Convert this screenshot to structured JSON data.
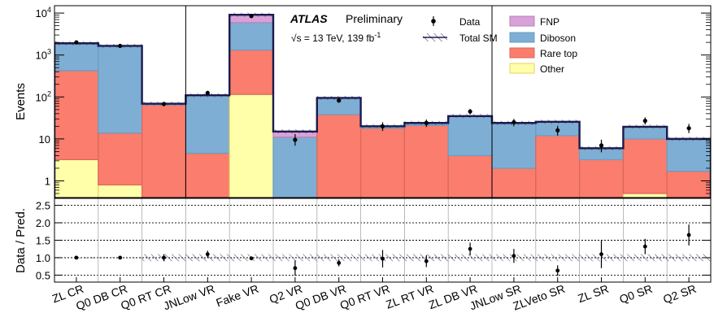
{
  "chart_data": {
    "type": "bar",
    "stacked": true,
    "y_scale": "log",
    "ylim": [
      0.4,
      15000
    ],
    "ratio_ylim": [
      0.3,
      2.7
    ],
    "ylabel": "Events",
    "ratio_ylabel": "Data / Pred.",
    "y_ticks": [
      "1",
      "10",
      "10^2",
      "10^3",
      "10^4"
    ],
    "ratio_ticks": [
      "0.5",
      "1.0",
      "1.5",
      "2.0",
      "2.5"
    ],
    "experiment": "ATLAS",
    "status": "Preliminary",
    "energy_label": "√s = 13 TeV, 139 fb",
    "energy_sup": "-1",
    "categories": [
      "ZL CR",
      "Q0 DB CR",
      "Q0 RT CR",
      "JNLow VR",
      "Fake VR",
      "Q2 VR",
      "Q0 DB VR",
      "Q0 RT VR",
      "ZL RT VR",
      "ZL DB VR",
      "JNLow SR",
      "ZLVeto SR",
      "ZL SR",
      "Q0 SR",
      "Q2 SR"
    ],
    "series": [
      {
        "name": "Other",
        "color": "#ffffaa",
        "edge": "#e6d26a",
        "values": [
          3.2,
          0.8,
          0,
          0.35,
          115,
          0,
          0,
          0,
          0,
          0,
          0,
          0.35,
          0,
          0.5,
          0
        ]
      },
      {
        "name": "Rare top",
        "color": "#fa7d6e",
        "edge": "#d86858",
        "values": [
          420,
          13,
          65,
          4.2,
          1200,
          0,
          38,
          18,
          21,
          4,
          2,
          11.6,
          3.2,
          9.5,
          1.7
        ]
      },
      {
        "name": "Diboson",
        "color": "#7eaed3",
        "edge": "#6a9cc4",
        "values": [
          1480,
          1637,
          4,
          105,
          4600,
          11,
          57,
          2,
          3,
          31,
          22,
          13,
          2.8,
          9.5,
          8.3
        ]
      },
      {
        "name": "FNP",
        "color": "#d8a1d8",
        "edge": "#b583b5",
        "values": [
          0,
          0,
          0,
          0,
          3200,
          4,
          0,
          0,
          0,
          0,
          0,
          0.6,
          0,
          0,
          0
        ]
      }
    ],
    "data": [
      2000,
      1650,
      68,
      125,
      8500,
      9.5,
      82,
      20,
      24,
      45,
      25,
      16,
      7,
      27,
      18
    ],
    "data_err_up": [
      45,
      40,
      8,
      11,
      92,
      3.6,
      9,
      5,
      5,
      7,
      5,
      4.5,
      2.6,
      5.6,
      4.8
    ],
    "data_err_down": [
      45,
      40,
      8,
      11,
      92,
      2.6,
      9,
      4.5,
      4.8,
      6.5,
      5,
      4,
      2.2,
      5,
      4.2
    ],
    "ratio": [
      1.0,
      1.0,
      1.0,
      1.1,
      0.98,
      0.7,
      0.85,
      0.97,
      0.9,
      1.25,
      1.05,
      0.63,
      1.1,
      1.32,
      1.65
    ],
    "ratio_err": [
      0.03,
      0.03,
      0.1,
      0.1,
      0.02,
      0.22,
      0.1,
      0.25,
      0.17,
      0.18,
      0.2,
      0.15,
      0.4,
      0.22,
      0.3
    ],
    "legend": {
      "data": "Data",
      "total": "Total SM",
      "FNP": "FNP",
      "Diboson": "Diboson",
      "Rare top": "Rare top",
      "Other": "Other"
    },
    "grid": false,
    "legend_position": "top-center and top-right"
  }
}
